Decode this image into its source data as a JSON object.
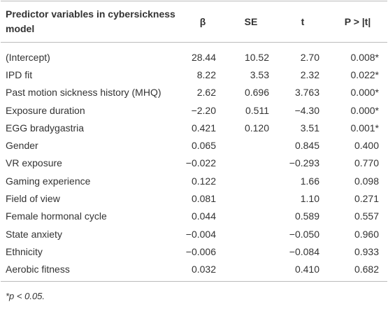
{
  "table": {
    "header": [
      "Predictor variables in cybersickness model",
      "β",
      "SE",
      "t",
      "P > |t|"
    ],
    "rows": [
      [
        "(Intercept)",
        "28.44",
        "10.52",
        "2.70",
        "0.008*"
      ],
      [
        "IPD fit",
        "8.22",
        "3.53",
        "2.32",
        "0.022*"
      ],
      [
        "Past motion sickness history (MHQ)",
        "2.62",
        "0.696",
        "3.763",
        "0.000*"
      ],
      [
        "Exposure duration",
        "−2.20",
        "0.511",
        "−4.30",
        "0.000*"
      ],
      [
        "EGG bradygastria",
        "0.421",
        "0.120",
        "3.51",
        "0.001*"
      ],
      [
        "Gender",
        "0.065",
        null,
        "0.845",
        "0.400"
      ],
      [
        "VR exposure",
        "−0.022",
        null,
        "−0.293",
        "0.770"
      ],
      [
        "Gaming experience",
        "0.122",
        null,
        "1.66",
        "0.098"
      ],
      [
        "Field of view",
        "0.081",
        null,
        "1.10",
        "0.271"
      ],
      [
        "Female hormonal cycle",
        "0.044",
        null,
        "0.589",
        "0.557"
      ],
      [
        "State anxiety",
        "−0.004",
        null,
        "−0.050",
        "0.960"
      ],
      [
        "Ethnicity",
        "−0.006",
        null,
        "−0.084",
        "0.933"
      ],
      [
        "Aerobic fitness",
        "0.032",
        null,
        "0.410",
        "0.682"
      ]
    ],
    "footnote": "*p < 0.05."
  }
}
